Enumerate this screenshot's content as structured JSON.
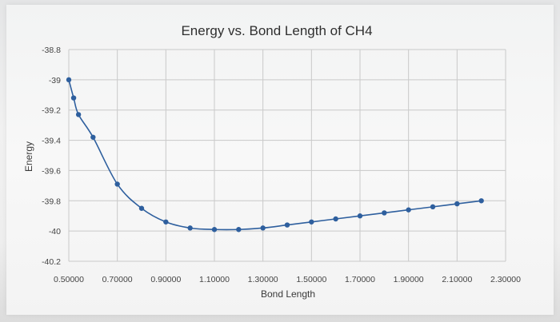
{
  "chart_data": {
    "type": "scatter",
    "title": "Energy vs. Bond Length of CH4",
    "xlabel": "Bond Length",
    "ylabel": "Energy",
    "xlim": [
      0.5,
      2.3
    ],
    "ylim": [
      -40.2,
      -38.8
    ],
    "x_ticks": [
      "0.50000",
      "0.70000",
      "0.90000",
      "1.10000",
      "1.30000",
      "1.50000",
      "1.70000",
      "1.90000",
      "2.10000",
      "2.30000"
    ],
    "y_ticks": [
      "-38.8",
      "-39",
      "-39.2",
      "-39.4",
      "-39.6",
      "-39.8",
      "-40",
      "-40.2"
    ],
    "grid": true,
    "legend": "none",
    "series": [
      {
        "color": "#2e5f9e",
        "x": [
          0.5,
          0.52,
          0.54,
          0.6,
          0.7,
          0.8,
          0.9,
          1.0,
          1.1,
          1.2,
          1.3,
          1.4,
          1.5,
          1.6,
          1.7,
          1.8,
          1.9,
          2.0,
          2.1,
          2.2
        ],
        "y": [
          -39.0,
          -39.12,
          -39.23,
          -39.38,
          -39.69,
          -39.85,
          -39.94,
          -39.98,
          -39.99,
          -39.99,
          -39.98,
          -39.96,
          -39.94,
          -39.92,
          -39.9,
          -39.88,
          -39.86,
          -39.84,
          -39.82,
          -39.8
        ]
      }
    ]
  }
}
